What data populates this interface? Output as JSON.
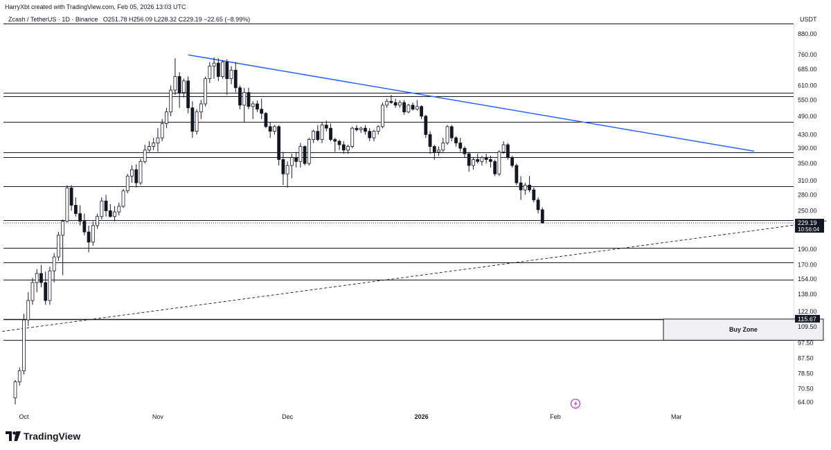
{
  "header": {
    "credit": "HarryXbt created with TradingView.com, Feb 05, 2026 13:03 UTC",
    "symbol": "Zcash / TetherUS · 1D · Binance",
    "ohlc_open_label": "O",
    "ohlc_open": "251.78",
    "ohlc_high_label": "H",
    "ohlc_high": "256.09",
    "ohlc_low_label": "L",
    "ohlc_low": "228.32",
    "ohlc_close_label": "C",
    "ohlc_close": "229.19",
    "change": "−22.65 (−8.99%)",
    "currency": "USDT"
  },
  "branding": {
    "name": "TradingView"
  },
  "chart_data": {
    "type": "candlestick",
    "title": "Zcash / TetherUS · 1D · Binance",
    "scale": "log",
    "y_ticks": [
      "880.00",
      "760.00",
      "685.00",
      "610.00",
      "550.00",
      "490.00",
      "430.00",
      "390.00",
      "350.00",
      "310.00",
      "280.00",
      "250.00",
      "190.00",
      "170.00",
      "154.00",
      "138.00",
      "122.00",
      "109.50",
      "97.50",
      "87.50",
      "78.50",
      "70.50",
      "64.00"
    ],
    "x_ticks": [
      {
        "label": "Oct",
        "day": 0
      },
      {
        "label": "Nov",
        "day": 31
      },
      {
        "label": "Dec",
        "day": 61
      },
      {
        "label": "2026",
        "day": 92
      },
      {
        "label": "Feb",
        "day": 123
      },
      {
        "label": "Mar",
        "day": 151
      }
    ],
    "last_price": {
      "value": "229.19",
      "countdown": "10:56:04",
      "color": "#131722"
    },
    "buy_zone_price": {
      "value": "115.67",
      "color": "#131722"
    },
    "buy_zone": {
      "label": "Buy Zone",
      "from_day": 148,
      "to_day": 185,
      "low": 99.5,
      "high": 115.67
    },
    "horizontal_levels": [
      580,
      566,
      470,
      379,
      367,
      297,
      234,
      192,
      173,
      153,
      115.67,
      99.5
    ],
    "trendlines": [
      {
        "name": "descending-resistance",
        "color": "#2962ff",
        "style": "solid",
        "from": {
          "day": 38,
          "price": 758
        },
        "to": {
          "day": 169,
          "price": 382
        }
      },
      {
        "name": "ascending-support",
        "color": "#131722",
        "style": "dashed",
        "from": {
          "day": -5,
          "price": 106
        },
        "to": {
          "day": 186,
          "price": 233
        }
      }
    ],
    "candles": [
      {
        "d": -2,
        "o": 66,
        "h": 75,
        "l": 63,
        "c": 74
      },
      {
        "d": -1,
        "o": 74,
        "h": 82,
        "l": 72,
        "c": 80
      },
      {
        "d": 0,
        "o": 80,
        "h": 120,
        "l": 78,
        "c": 115
      },
      {
        "d": 1,
        "o": 115,
        "h": 140,
        "l": 110,
        "c": 132
      },
      {
        "d": 2,
        "o": 132,
        "h": 155,
        "l": 128,
        "c": 150
      },
      {
        "d": 3,
        "o": 150,
        "h": 165,
        "l": 140,
        "c": 160
      },
      {
        "d": 4,
        "o": 160,
        "h": 170,
        "l": 145,
        "c": 150
      },
      {
        "d": 5,
        "o": 150,
        "h": 162,
        "l": 128,
        "c": 132
      },
      {
        "d": 6,
        "o": 132,
        "h": 168,
        "l": 128,
        "c": 163
      },
      {
        "d": 7,
        "o": 163,
        "h": 185,
        "l": 150,
        "c": 180
      },
      {
        "d": 8,
        "o": 180,
        "h": 215,
        "l": 175,
        "c": 210
      },
      {
        "d": 9,
        "o": 210,
        "h": 235,
        "l": 158,
        "c": 232
      },
      {
        "d": 10,
        "o": 232,
        "h": 300,
        "l": 230,
        "c": 294
      },
      {
        "d": 11,
        "o": 294,
        "h": 300,
        "l": 250,
        "c": 260
      },
      {
        "d": 12,
        "o": 260,
        "h": 275,
        "l": 240,
        "c": 245
      },
      {
        "d": 13,
        "o": 245,
        "h": 260,
        "l": 225,
        "c": 232
      },
      {
        "d": 14,
        "o": 232,
        "h": 245,
        "l": 210,
        "c": 215
      },
      {
        "d": 15,
        "o": 215,
        "h": 225,
        "l": 186,
        "c": 200
      },
      {
        "d": 16,
        "o": 200,
        "h": 232,
        "l": 195,
        "c": 225
      },
      {
        "d": 17,
        "o": 225,
        "h": 245,
        "l": 220,
        "c": 240
      },
      {
        "d": 18,
        "o": 240,
        "h": 275,
        "l": 235,
        "c": 268
      },
      {
        "d": 19,
        "o": 268,
        "h": 280,
        "l": 240,
        "c": 250
      },
      {
        "d": 20,
        "o": 250,
        "h": 262,
        "l": 238,
        "c": 240
      },
      {
        "d": 21,
        "o": 240,
        "h": 258,
        "l": 232,
        "c": 248
      },
      {
        "d": 22,
        "o": 248,
        "h": 265,
        "l": 242,
        "c": 258
      },
      {
        "d": 23,
        "o": 258,
        "h": 292,
        "l": 255,
        "c": 288
      },
      {
        "d": 24,
        "o": 288,
        "h": 325,
        "l": 283,
        "c": 320
      },
      {
        "d": 25,
        "o": 320,
        "h": 345,
        "l": 305,
        "c": 335
      },
      {
        "d": 26,
        "o": 335,
        "h": 348,
        "l": 295,
        "c": 305
      },
      {
        "d": 27,
        "o": 305,
        "h": 362,
        "l": 300,
        "c": 355
      },
      {
        "d": 28,
        "o": 355,
        "h": 400,
        "l": 350,
        "c": 385
      },
      {
        "d": 29,
        "o": 385,
        "h": 410,
        "l": 380,
        "c": 395
      },
      {
        "d": 30,
        "o": 395,
        "h": 420,
        "l": 385,
        "c": 405
      },
      {
        "d": 31,
        "o": 405,
        "h": 450,
        "l": 380,
        "c": 420
      },
      {
        "d": 32,
        "o": 420,
        "h": 480,
        "l": 410,
        "c": 465
      },
      {
        "d": 33,
        "o": 465,
        "h": 520,
        "l": 450,
        "c": 505
      },
      {
        "d": 34,
        "o": 505,
        "h": 610,
        "l": 490,
        "c": 590
      },
      {
        "d": 35,
        "o": 590,
        "h": 740,
        "l": 570,
        "c": 650
      },
      {
        "d": 36,
        "o": 650,
        "h": 670,
        "l": 520,
        "c": 580
      },
      {
        "d": 37,
        "o": 580,
        "h": 640,
        "l": 560,
        "c": 630
      },
      {
        "d": 38,
        "o": 630,
        "h": 650,
        "l": 500,
        "c": 520
      },
      {
        "d": 39,
        "o": 520,
        "h": 545,
        "l": 420,
        "c": 440
      },
      {
        "d": 40,
        "o": 440,
        "h": 515,
        "l": 430,
        "c": 505
      },
      {
        "d": 41,
        "o": 505,
        "h": 550,
        "l": 480,
        "c": 535
      },
      {
        "d": 42,
        "o": 535,
        "h": 650,
        "l": 525,
        "c": 640
      },
      {
        "d": 43,
        "o": 640,
        "h": 720,
        "l": 620,
        "c": 700
      },
      {
        "d": 44,
        "o": 700,
        "h": 745,
        "l": 640,
        "c": 715
      },
      {
        "d": 45,
        "o": 715,
        "h": 740,
        "l": 630,
        "c": 650
      },
      {
        "d": 46,
        "o": 650,
        "h": 730,
        "l": 640,
        "c": 720
      },
      {
        "d": 47,
        "o": 720,
        "h": 735,
        "l": 570,
        "c": 640
      },
      {
        "d": 48,
        "o": 640,
        "h": 700,
        "l": 615,
        "c": 680
      },
      {
        "d": 49,
        "o": 680,
        "h": 720,
        "l": 580,
        "c": 600
      },
      {
        "d": 50,
        "o": 600,
        "h": 610,
        "l": 515,
        "c": 530
      },
      {
        "d": 51,
        "o": 530,
        "h": 600,
        "l": 470,
        "c": 580
      },
      {
        "d": 52,
        "o": 580,
        "h": 600,
        "l": 515,
        "c": 525
      },
      {
        "d": 53,
        "o": 525,
        "h": 545,
        "l": 480,
        "c": 535
      },
      {
        "d": 54,
        "o": 535,
        "h": 548,
        "l": 505,
        "c": 515
      },
      {
        "d": 55,
        "o": 515,
        "h": 555,
        "l": 480,
        "c": 500
      },
      {
        "d": 56,
        "o": 500,
        "h": 505,
        "l": 450,
        "c": 455
      },
      {
        "d": 57,
        "o": 455,
        "h": 470,
        "l": 420,
        "c": 440
      },
      {
        "d": 58,
        "o": 440,
        "h": 460,
        "l": 430,
        "c": 455
      },
      {
        "d": 59,
        "o": 455,
        "h": 460,
        "l": 345,
        "c": 360
      },
      {
        "d": 60,
        "o": 360,
        "h": 380,
        "l": 300,
        "c": 325
      },
      {
        "d": 61,
        "o": 325,
        "h": 355,
        "l": 295,
        "c": 345
      },
      {
        "d": 62,
        "o": 345,
        "h": 375,
        "l": 315,
        "c": 365
      },
      {
        "d": 63,
        "o": 365,
        "h": 380,
        "l": 340,
        "c": 355
      },
      {
        "d": 64,
        "o": 355,
        "h": 405,
        "l": 340,
        "c": 395
      },
      {
        "d": 65,
        "o": 395,
        "h": 398,
        "l": 345,
        "c": 350
      },
      {
        "d": 66,
        "o": 350,
        "h": 420,
        "l": 345,
        "c": 415
      },
      {
        "d": 67,
        "o": 415,
        "h": 445,
        "l": 405,
        "c": 440
      },
      {
        "d": 68,
        "o": 440,
        "h": 460,
        "l": 410,
        "c": 415
      },
      {
        "d": 69,
        "o": 415,
        "h": 470,
        "l": 405,
        "c": 460
      },
      {
        "d": 70,
        "o": 460,
        "h": 475,
        "l": 440,
        "c": 450
      },
      {
        "d": 71,
        "o": 450,
        "h": 465,
        "l": 410,
        "c": 415
      },
      {
        "d": 72,
        "o": 415,
        "h": 420,
        "l": 380,
        "c": 410
      },
      {
        "d": 73,
        "o": 410,
        "h": 415,
        "l": 385,
        "c": 400
      },
      {
        "d": 74,
        "o": 400,
        "h": 410,
        "l": 375,
        "c": 385
      },
      {
        "d": 75,
        "o": 385,
        "h": 400,
        "l": 375,
        "c": 395
      },
      {
        "d": 76,
        "o": 395,
        "h": 455,
        "l": 390,
        "c": 450
      },
      {
        "d": 77,
        "o": 450,
        "h": 460,
        "l": 440,
        "c": 445
      },
      {
        "d": 78,
        "o": 445,
        "h": 455,
        "l": 435,
        "c": 450
      },
      {
        "d": 79,
        "o": 450,
        "h": 460,
        "l": 430,
        "c": 440
      },
      {
        "d": 80,
        "o": 440,
        "h": 450,
        "l": 410,
        "c": 420
      },
      {
        "d": 81,
        "o": 420,
        "h": 445,
        "l": 410,
        "c": 440
      },
      {
        "d": 82,
        "o": 440,
        "h": 460,
        "l": 430,
        "c": 455
      },
      {
        "d": 83,
        "o": 455,
        "h": 540,
        "l": 450,
        "c": 530
      },
      {
        "d": 84,
        "o": 530,
        "h": 555,
        "l": 520,
        "c": 545
      },
      {
        "d": 85,
        "o": 545,
        "h": 570,
        "l": 535,
        "c": 540
      },
      {
        "d": 86,
        "o": 540,
        "h": 555,
        "l": 520,
        "c": 530
      },
      {
        "d": 87,
        "o": 530,
        "h": 548,
        "l": 520,
        "c": 540
      },
      {
        "d": 88,
        "o": 540,
        "h": 550,
        "l": 495,
        "c": 505
      },
      {
        "d": 89,
        "o": 505,
        "h": 535,
        "l": 500,
        "c": 530
      },
      {
        "d": 90,
        "o": 530,
        "h": 540,
        "l": 510,
        "c": 515
      },
      {
        "d": 91,
        "o": 515,
        "h": 550,
        "l": 510,
        "c": 525
      },
      {
        "d": 92,
        "o": 525,
        "h": 530,
        "l": 480,
        "c": 490
      },
      {
        "d": 93,
        "o": 490,
        "h": 495,
        "l": 420,
        "c": 430
      },
      {
        "d": 94,
        "o": 430,
        "h": 440,
        "l": 375,
        "c": 395
      },
      {
        "d": 95,
        "o": 395,
        "h": 400,
        "l": 360,
        "c": 380
      },
      {
        "d": 96,
        "o": 380,
        "h": 395,
        "l": 370,
        "c": 385
      },
      {
        "d": 97,
        "o": 385,
        "h": 420,
        "l": 380,
        "c": 405
      },
      {
        "d": 98,
        "o": 405,
        "h": 460,
        "l": 400,
        "c": 455
      },
      {
        "d": 99,
        "o": 455,
        "h": 460,
        "l": 410,
        "c": 420
      },
      {
        "d": 100,
        "o": 420,
        "h": 425,
        "l": 395,
        "c": 405
      },
      {
        "d": 101,
        "o": 405,
        "h": 420,
        "l": 380,
        "c": 390
      },
      {
        "d": 102,
        "o": 390,
        "h": 395,
        "l": 365,
        "c": 375
      },
      {
        "d": 103,
        "o": 375,
        "h": 380,
        "l": 330,
        "c": 345
      },
      {
        "d": 104,
        "o": 345,
        "h": 365,
        "l": 335,
        "c": 360
      },
      {
        "d": 105,
        "o": 360,
        "h": 375,
        "l": 350,
        "c": 355
      },
      {
        "d": 106,
        "o": 355,
        "h": 370,
        "l": 345,
        "c": 365
      },
      {
        "d": 107,
        "o": 365,
        "h": 375,
        "l": 350,
        "c": 360
      },
      {
        "d": 108,
        "o": 360,
        "h": 370,
        "l": 340,
        "c": 355
      },
      {
        "d": 109,
        "o": 355,
        "h": 360,
        "l": 320,
        "c": 325
      },
      {
        "d": 110,
        "o": 325,
        "h": 385,
        "l": 320,
        "c": 380
      },
      {
        "d": 111,
        "o": 380,
        "h": 410,
        "l": 375,
        "c": 400
      },
      {
        "d": 112,
        "o": 400,
        "h": 405,
        "l": 360,
        "c": 365
      },
      {
        "d": 113,
        "o": 365,
        "h": 370,
        "l": 340,
        "c": 345
      },
      {
        "d": 114,
        "o": 345,
        "h": 350,
        "l": 300,
        "c": 305
      },
      {
        "d": 115,
        "o": 305,
        "h": 320,
        "l": 270,
        "c": 290
      },
      {
        "d": 116,
        "o": 290,
        "h": 305,
        "l": 280,
        "c": 300
      },
      {
        "d": 117,
        "o": 300,
        "h": 320,
        "l": 285,
        "c": 290
      },
      {
        "d": 118,
        "o": 290,
        "h": 295,
        "l": 265,
        "c": 270
      },
      {
        "d": 119,
        "o": 270,
        "h": 275,
        "l": 245,
        "c": 251.78
      },
      {
        "d": 120,
        "o": 251.78,
        "h": 256.09,
        "l": 228.32,
        "c": 229.19
      }
    ]
  }
}
